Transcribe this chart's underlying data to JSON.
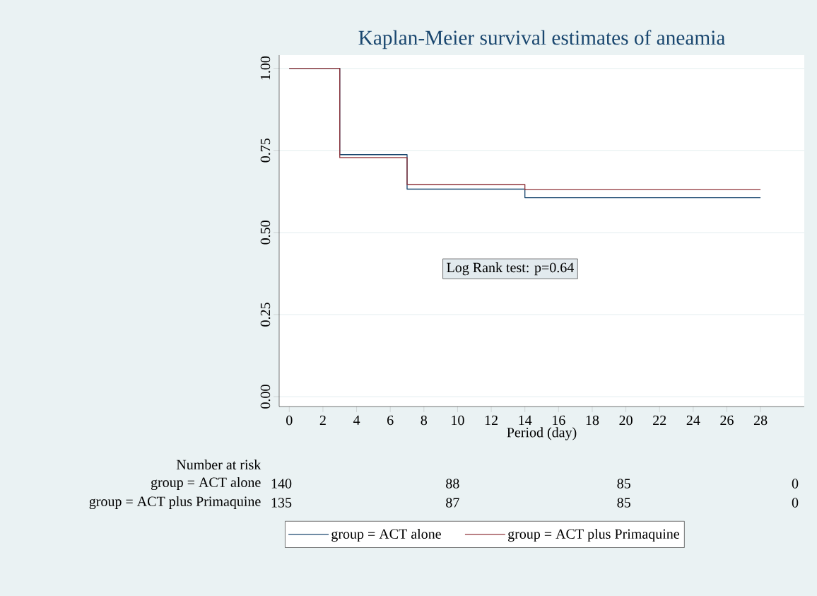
{
  "chart_data": {
    "type": "step",
    "title": "Kaplan-Meier survival estimates of aneamia",
    "xlabel": "Period (day)",
    "series": [
      {
        "name": "group = ACT alone",
        "color": "#1a476f",
        "x": [
          0,
          3,
          7,
          14,
          28
        ],
        "values": [
          1.0,
          0.737,
          0.632,
          0.606,
          0.606
        ]
      },
      {
        "name": "group = ACT plus Primaquine",
        "color": "#90353b",
        "x": [
          0,
          3,
          7,
          14,
          28
        ],
        "values": [
          1.0,
          0.728,
          0.646,
          0.63,
          0.63
        ]
      }
    ],
    "xlim": [
      -0.6,
      30.6
    ],
    "ylim": [
      -0.03,
      1.04
    ],
    "xticks": [
      0,
      2,
      4,
      6,
      8,
      10,
      12,
      14,
      16,
      18,
      20,
      22,
      24,
      26,
      28
    ],
    "yticks": [
      {
        "value": 0,
        "label": "0.00"
      },
      {
        "value": 0.25,
        "label": "0.25"
      },
      {
        "value": 0.5,
        "label": "0.50"
      },
      {
        "value": 0.75,
        "label": "0.75"
      },
      {
        "value": 1,
        "label": "1.00"
      }
    ],
    "grid": "y",
    "legend": "bottom",
    "line_style": "solid",
    "marker": "none",
    "annotations": [
      "Log Rank test: p=0.64",
      "Number at risk",
      "group = ACT alone",
      "140",
      "88",
      "85",
      "0",
      "group = ACT plus Primaquine",
      "135",
      "87",
      "85",
      "0"
    ]
  }
}
